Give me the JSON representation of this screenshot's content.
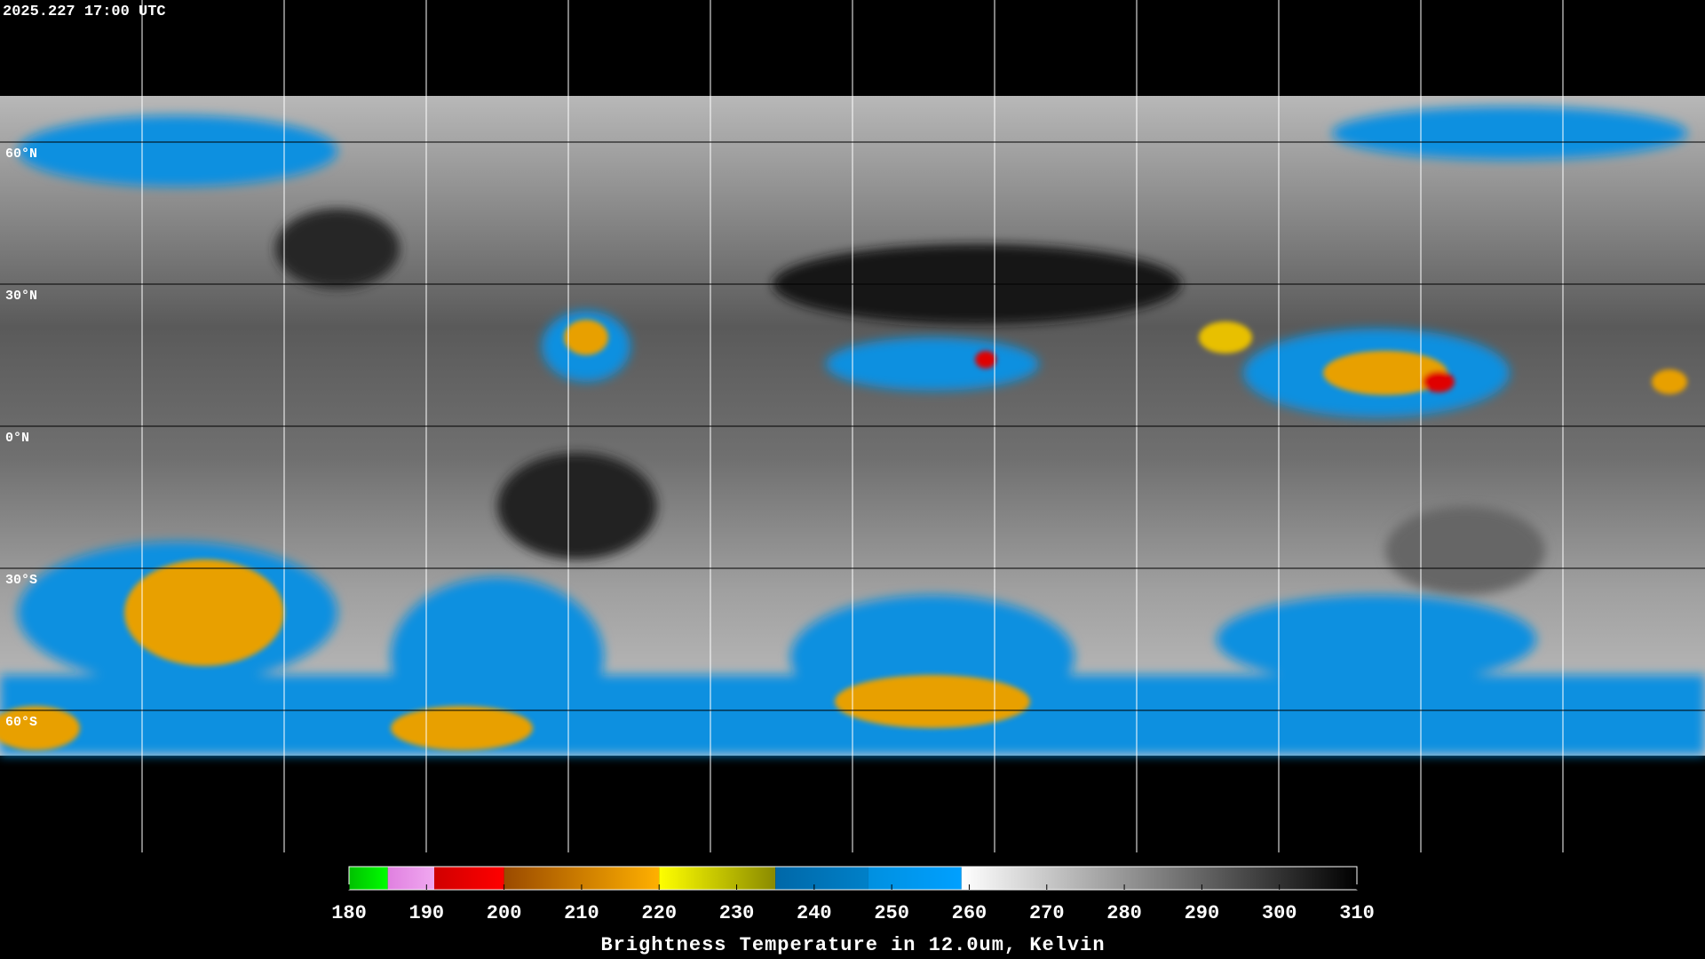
{
  "timestamp": "2025.227 17:00 UTC",
  "map": {
    "lonlim": [
      -180,
      180
    ],
    "latlim": [
      90,
      -90
    ],
    "lon_lines": [
      -150,
      -120,
      -90,
      -60,
      -30,
      0,
      30,
      60,
      90,
      120,
      150
    ],
    "lat_lines": [
      {
        "value": 60,
        "label": "60°N"
      },
      {
        "value": 30,
        "label": "30°N"
      },
      {
        "value": 0,
        "label": "0°N"
      },
      {
        "value": -30,
        "label": "30°S"
      },
      {
        "value": -60,
        "label": "60°S"
      }
    ]
  },
  "colorbar": {
    "range": [
      180,
      310
    ],
    "ticks": [
      180,
      190,
      200,
      210,
      220,
      230,
      240,
      250,
      260,
      270,
      280,
      290,
      300,
      310
    ],
    "segments": [
      {
        "from": 180,
        "to": 185,
        "color_from": "#00c000",
        "color_to": "#00ff00"
      },
      {
        "from": 185,
        "to": 191,
        "color_from": "#e080e0",
        "color_to": "#f0a8f0"
      },
      {
        "from": 191,
        "to": 200,
        "color_from": "#d00000",
        "color_to": "#ff0000"
      },
      {
        "from": 200,
        "to": 220,
        "color_from": "#9a4a00",
        "color_to": "#ffb000"
      },
      {
        "from": 220,
        "to": 235,
        "color_from": "#ffff00",
        "color_to": "#8a8a00"
      },
      {
        "from": 235,
        "to": 247,
        "color_from": "#0068a8",
        "color_to": "#0080c8"
      },
      {
        "from": 247,
        "to": 259,
        "color_from": "#0090e0",
        "color_to": "#00a0ff"
      },
      {
        "from": 259,
        "to": 310,
        "color_from": "#ffffff",
        "color_to": "#000000"
      }
    ],
    "title": "Brightness Temperature in 12.0um, Kelvin"
  }
}
